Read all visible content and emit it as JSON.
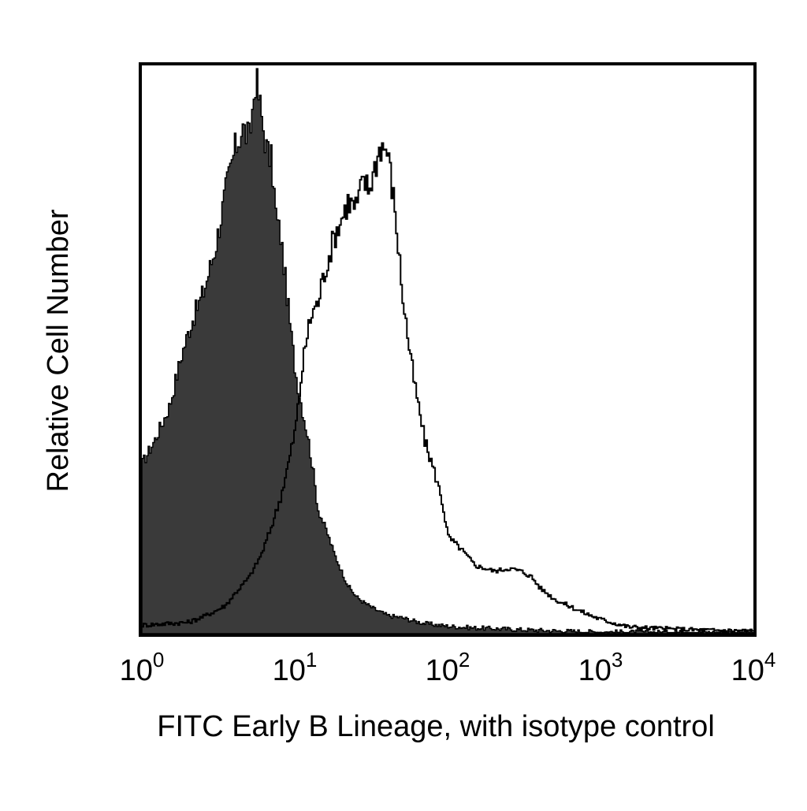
{
  "chart_data": {
    "type": "area",
    "title": "",
    "xlabel": "FITC Early B Lineage, with isotype control",
    "ylabel": "Relative Cell Number",
    "x_scale": "log",
    "xlim": [
      1,
      10000
    ],
    "ylim": [
      0,
      100
    ],
    "grid": false,
    "x_ticks": [
      {
        "value": 1,
        "base": "10",
        "exp": "0"
      },
      {
        "value": 10,
        "base": "10",
        "exp": "1"
      },
      {
        "value": 100,
        "base": "10",
        "exp": "2"
      },
      {
        "value": 1000,
        "base": "10",
        "exp": "3"
      },
      {
        "value": 10000,
        "base": "10",
        "exp": "4"
      }
    ],
    "series": [
      {
        "fill": "#3a3a3a",
        "stroke": "#000000",
        "style": "filled",
        "x": [
          1,
          1.2,
          1.5,
          1.8,
          2.1,
          2.5,
          3.0,
          3.5,
          4.0,
          4.5,
          5.0,
          5.5,
          6.0,
          6.5,
          7.0,
          7.5,
          8.0,
          9.0,
          10,
          11,
          12,
          13,
          14,
          16,
          18,
          20,
          22,
          25,
          28,
          32,
          36,
          40,
          50,
          60,
          70,
          85,
          100,
          150,
          200,
          300,
          500,
          1000,
          10000
        ],
        "y": [
          30,
          34,
          40,
          49,
          55,
          60,
          68,
          78,
          85,
          89,
          87,
          98,
          91,
          85,
          83,
          73,
          70,
          57,
          46,
          40,
          35,
          29,
          22,
          18,
          14,
          11,
          8.5,
          6.5,
          5.5,
          4.5,
          3.8,
          3.2,
          2.8,
          2.2,
          1.8,
          1.5,
          1.3,
          1.0,
          0.9,
          0.7,
          0.5,
          0.3,
          0.2
        ]
      },
      {
        "fill": "none",
        "stroke": "#000000",
        "style": "outline",
        "x": [
          1,
          1.5,
          2,
          2.5,
          3,
          3.5,
          4,
          5,
          6,
          7,
          8,
          9,
          10,
          11,
          12,
          13,
          14,
          15,
          16,
          18,
          20,
          22,
          25,
          28,
          30,
          33,
          36,
          40,
          45,
          50,
          55,
          60,
          70,
          80,
          90,
          100,
          120,
          150,
          200,
          250,
          300,
          350,
          400,
          500,
          600,
          800,
          1000,
          1500,
          2000,
          3000,
          5000,
          10000
        ],
        "y": [
          1.5,
          1.8,
          2,
          3,
          4,
          5,
          7,
          10,
          14,
          19,
          24,
          30,
          36,
          46,
          53,
          57,
          58,
          62,
          65,
          70,
          73,
          76,
          75,
          80,
          78,
          82,
          86,
          85,
          74,
          60,
          51,
          44,
          34,
          29,
          24,
          17,
          15,
          12,
          11,
          11.5,
          11,
          10,
          8,
          6,
          5,
          3.5,
          2.5,
          1.2,
          1.0,
          0.8,
          0.6,
          0.5
        ]
      }
    ]
  }
}
